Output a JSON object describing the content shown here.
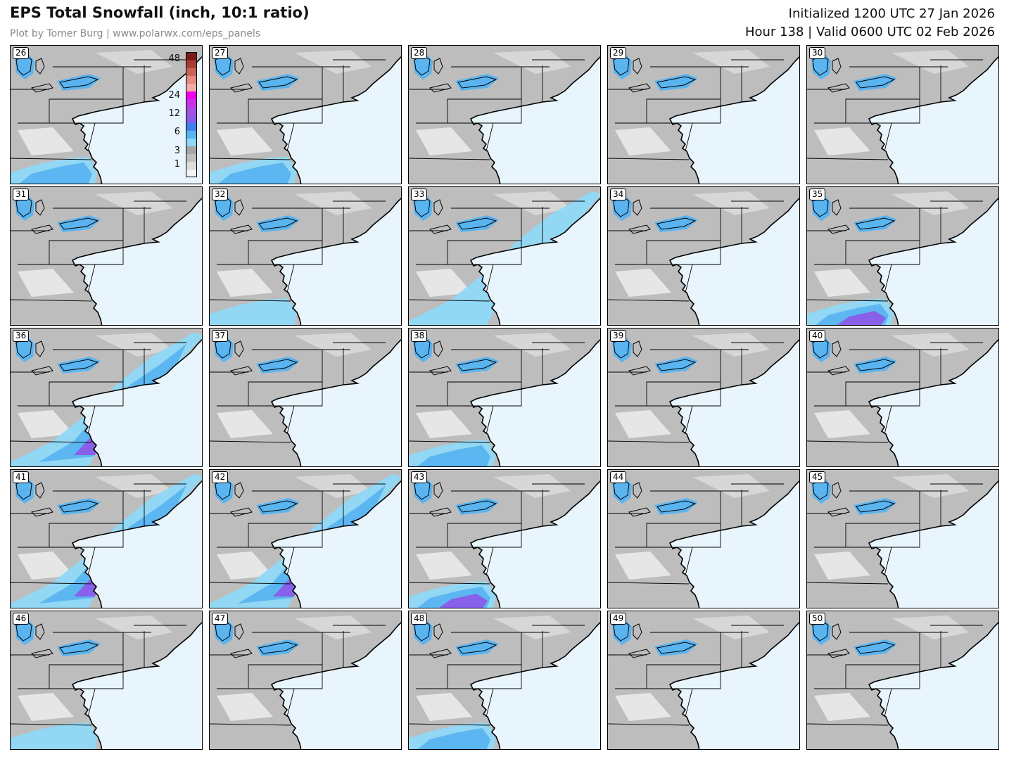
{
  "header": {
    "title": "EPS Total Snowfall (inch, 10:1 ratio)",
    "credit": "Plot by Tomer Burg | www.polarwx.com/eps_panels",
    "initialized": "Initialized 1200 UTC 27 Jan 2026",
    "valid": "Hour 138 | Valid 0600 UTC 02 Feb 2026"
  },
  "colorbar": {
    "labels": [
      "48",
      "24",
      "12",
      "6",
      "3",
      "1"
    ],
    "colors": [
      "#f4f4f4",
      "#dcdcdc",
      "#c0c0c0",
      "#a6a6a6",
      "#8fd8f5",
      "#5ab4f0",
      "#3f7fe8",
      "#8a5ce8",
      "#a650e0",
      "#c832e8",
      "#f000f0",
      "#f4aaa8",
      "#e48a7e",
      "#c86456",
      "#a83c30",
      "#7a1a14"
    ]
  },
  "colors": {
    "ocean": "#e9f5fc",
    "land": "#bdbdbd",
    "snow_light": "#8fd8f5",
    "snow_medium": "#5ab4f0",
    "snow_heavy": "#8a5ce8",
    "snow_extreme": "#f000f0"
  },
  "members": [
    {
      "id": "26",
      "coastal": "moderate-south"
    },
    {
      "id": "27",
      "coastal": "moderate-south"
    },
    {
      "id": "28",
      "coastal": "none"
    },
    {
      "id": "29",
      "coastal": "none"
    },
    {
      "id": "30",
      "coastal": "none"
    },
    {
      "id": "31",
      "coastal": "none"
    },
    {
      "id": "32",
      "coastal": "light-south"
    },
    {
      "id": "33",
      "coastal": "moderate-coast"
    },
    {
      "id": "34",
      "coastal": "none"
    },
    {
      "id": "35",
      "coastal": "heavy-south"
    },
    {
      "id": "36",
      "coastal": "extreme-coast"
    },
    {
      "id": "37",
      "coastal": "none"
    },
    {
      "id": "38",
      "coastal": "moderate-south"
    },
    {
      "id": "39",
      "coastal": "none"
    },
    {
      "id": "40",
      "coastal": "none"
    },
    {
      "id": "41",
      "coastal": "heavy-coast"
    },
    {
      "id": "42",
      "coastal": "heavy-coast"
    },
    {
      "id": "43",
      "coastal": "heavy-south"
    },
    {
      "id": "44",
      "coastal": "none"
    },
    {
      "id": "45",
      "coastal": "none"
    },
    {
      "id": "46",
      "coastal": "light-south"
    },
    {
      "id": "47",
      "coastal": "none"
    },
    {
      "id": "48",
      "coastal": "moderate-south"
    },
    {
      "id": "49",
      "coastal": "none"
    },
    {
      "id": "50",
      "coastal": "none"
    }
  ]
}
